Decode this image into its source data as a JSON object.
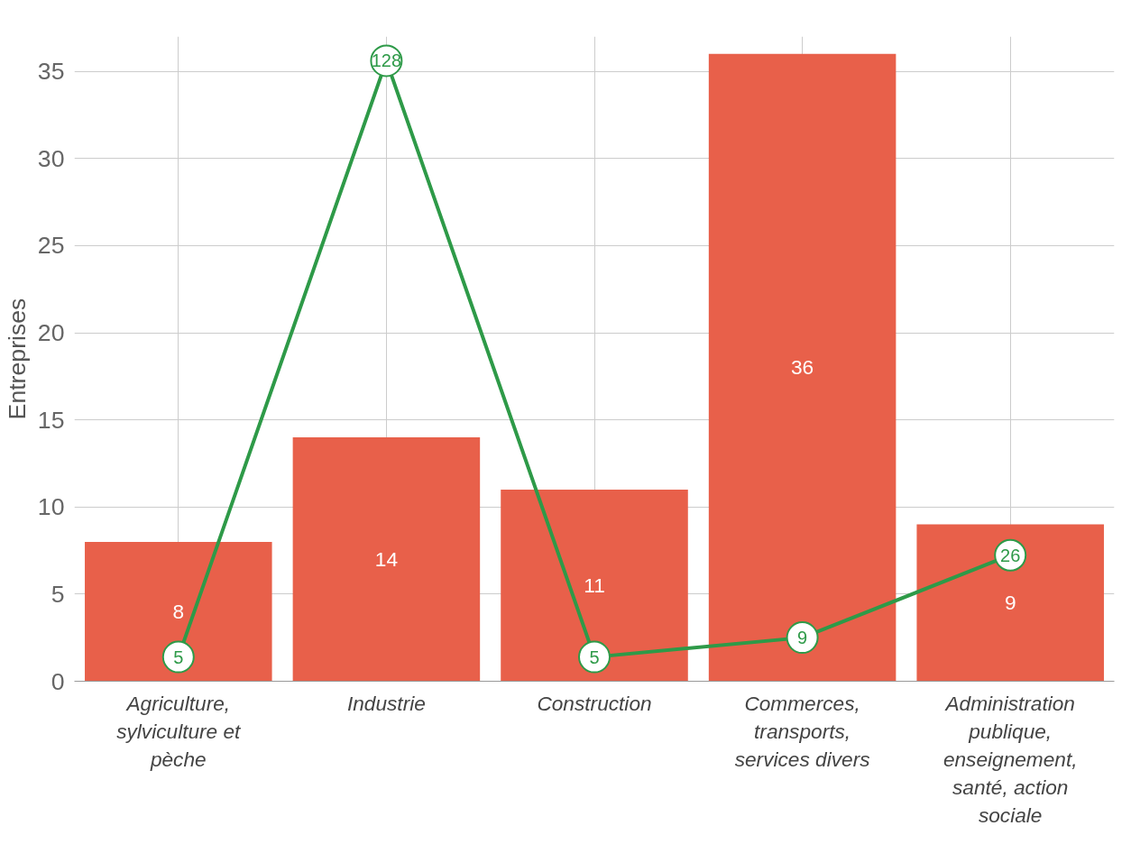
{
  "chart_data": {
    "type": "bar",
    "ylabel": "Entreprises",
    "categories": [
      "Agriculture,\nsylviculture et\npèche",
      "Industrie",
      "Construction",
      "Commerces,\ntransports,\nservices divers",
      "Administration\npublique,\nenseignement,\nsanté, action\nsociale"
    ],
    "series": [
      {
        "color": "#e8604a",
        "values": [
          8,
          14,
          11,
          36,
          9
        ]
      },
      {
        "type": "line",
        "axis": "y2",
        "color": "#2e9a48",
        "marker": "circle",
        "values": [
          5,
          128,
          5,
          9,
          26
        ]
      }
    ],
    "ylim": [
      0,
      37
    ],
    "yticks": [
      0,
      5,
      10,
      15,
      20,
      25,
      30,
      35
    ],
    "y2lim": [
      0,
      133
    ],
    "grid": true,
    "data_labels": true
  }
}
